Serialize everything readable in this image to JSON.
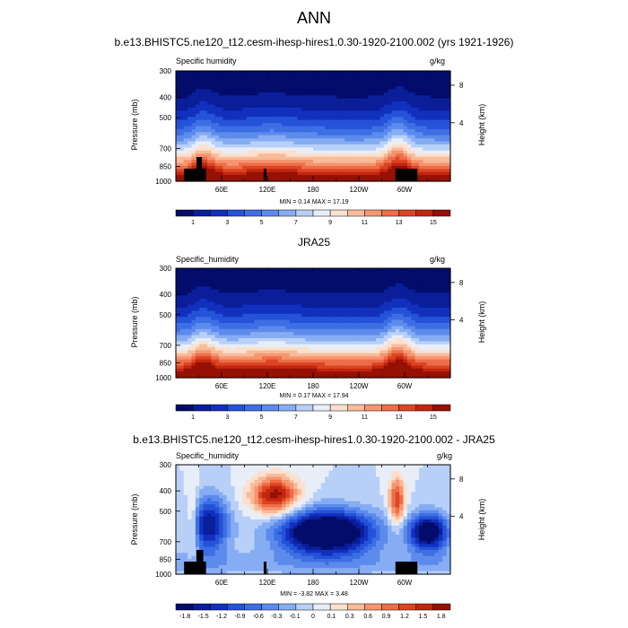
{
  "page_title": "ANN",
  "chart_data": [
    {
      "type": "heatmap",
      "title": "b.e13.BHISTC5.ne120_t12.cesm-ihesp-hires1.0.30-1920-2100.002 (yrs 1921-1926)",
      "left_string": "Specific humidity",
      "right_string": "g/kg",
      "xlabel": "",
      "ylabel": "Pressure (mb)",
      "ylabel_right": "Height (km)",
      "xtick_labels": [
        "60E",
        "120E",
        "180",
        "120W",
        "60W"
      ],
      "ytick_labels": [
        "300",
        "400",
        "500",
        "700",
        "850",
        "1000"
      ],
      "ytick_values": [
        300,
        400,
        500,
        700,
        850,
        1000
      ],
      "right_tick_labels": [
        "8",
        "4"
      ],
      "stats": "MIN =   0.14  MAX =   17.19",
      "colorbar_labels": [
        "1",
        "3",
        "5",
        "7",
        "9",
        "11",
        "13",
        "15"
      ],
      "colorbar_levels": [
        1,
        2,
        3,
        4,
        5,
        6,
        7,
        8,
        9,
        10,
        11,
        12,
        13,
        14,
        15
      ],
      "min": 0.14,
      "max": 17.19
    },
    {
      "type": "heatmap",
      "title": "JRA25",
      "left_string": "Specific_humidity",
      "right_string": "g/kg",
      "ylabel": "Pressure (mb)",
      "ylabel_right": "Height (km)",
      "xtick_labels": [
        "60E",
        "120E",
        "180",
        "120W",
        "60W"
      ],
      "ytick_labels": [
        "300",
        "400",
        "500",
        "700",
        "850",
        "1000"
      ],
      "ytick_values": [
        300,
        400,
        500,
        700,
        850,
        1000
      ],
      "right_tick_labels": [
        "8",
        "4"
      ],
      "stats": "MIN =   0.17  MAX =   17.94",
      "colorbar_labels": [
        "1",
        "3",
        "5",
        "7",
        "9",
        "11",
        "13",
        "15"
      ],
      "colorbar_levels": [
        1,
        2,
        3,
        4,
        5,
        6,
        7,
        8,
        9,
        10,
        11,
        12,
        13,
        14,
        15
      ],
      "min": 0.17,
      "max": 17.94
    },
    {
      "type": "heatmap",
      "title": "b.e13.BHISTC5.ne120_t12.cesm-ihesp-hires1.0.30-1920-2100.002 - JRA25",
      "left_string": "Specific_humidity",
      "right_string": "g/kg",
      "ylabel": "Pressure (mb)",
      "ylabel_right": "Height (km)",
      "xtick_labels": [
        "60E",
        "120E",
        "180",
        "120W",
        "60W"
      ],
      "ytick_labels": [
        "300",
        "400",
        "500",
        "700",
        "850",
        "1000"
      ],
      "ytick_values": [
        300,
        400,
        500,
        700,
        850,
        1000
      ],
      "right_tick_labels": [
        "8",
        "4"
      ],
      "stats": "MIN =  -3.82  MAX =   3.48",
      "colorbar_labels": [
        "-1.8",
        "-1.5",
        "-1.2",
        "-0.9",
        "-0.6",
        "-0.3",
        "-0.1",
        "0",
        "0.1",
        "0.3",
        "0.6",
        "0.9",
        "1.2",
        "1.5",
        "1.8"
      ],
      "colorbar_levels": [
        -1.8,
        -1.5,
        -1.2,
        -0.9,
        -0.6,
        -0.3,
        -0.1,
        0,
        0.1,
        0.3,
        0.6,
        0.9,
        1.2,
        1.5,
        1.8
      ],
      "min": -3.82,
      "max": 3.48
    }
  ],
  "colors": {
    "seq": [
      "#040c6b",
      "#0a1e9a",
      "#1230be",
      "#2452d8",
      "#3d6ee4",
      "#5c8bec",
      "#86adf3",
      "#b8d0f8",
      "#e8eef7",
      "#fbe0cd",
      "#f9bb9a",
      "#f59670",
      "#ed6e48",
      "#dc4523",
      "#c2260e",
      "#961004"
    ],
    "div": [
      "#040c6b",
      "#0a1e9a",
      "#1230be",
      "#2452d8",
      "#3d6ee4",
      "#5c8bec",
      "#86adf3",
      "#b8d0f8",
      "#e8eef7",
      "#fbe0cd",
      "#f9bb9a",
      "#f59670",
      "#ed6e48",
      "#dc4523",
      "#c2260e",
      "#961004"
    ]
  }
}
